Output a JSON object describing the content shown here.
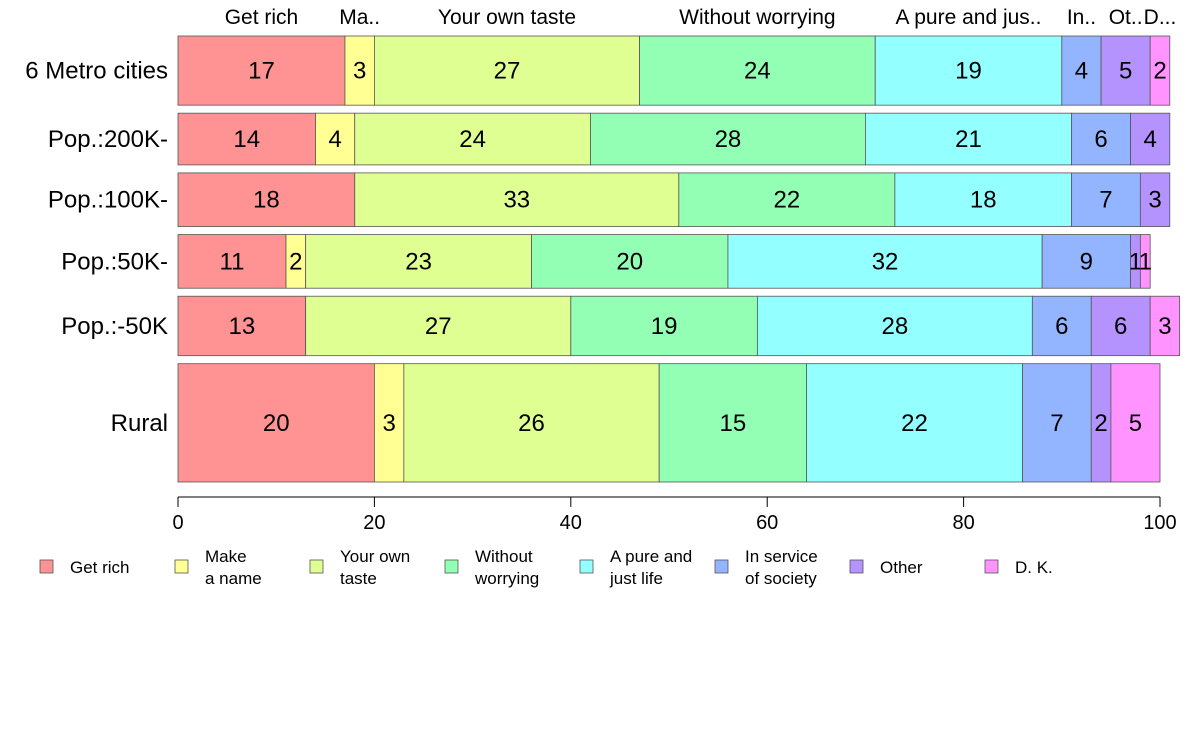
{
  "chart_data": {
    "type": "bar",
    "orientation": "horizontal",
    "stacked": true,
    "rows": [
      "6 Metro cities",
      "Pop.:200K-",
      "Pop.:100K-",
      "Pop.:50K-",
      "Pop.:-50K",
      "Rural"
    ],
    "relative_heights": [
      1.07,
      0.8,
      0.83,
      0.83,
      0.92,
      1.83
    ],
    "series": [
      {
        "name": "Get rich",
        "legend": [
          "Get rich"
        ],
        "color": "#ff9393",
        "values": [
          17,
          14,
          18,
          11,
          13,
          20
        ]
      },
      {
        "name": "Make a name",
        "legend": [
          "Make",
          "a name"
        ],
        "color": "#ffff93",
        "values": [
          3,
          4,
          0,
          2,
          0,
          3
        ]
      },
      {
        "name": "Your own taste",
        "legend": [
          "Your own",
          "taste"
        ],
        "color": "#dfff93",
        "values": [
          27,
          24,
          33,
          23,
          27,
          26
        ]
      },
      {
        "name": "Without worrying",
        "legend": [
          "Without",
          "worrying"
        ],
        "color": "#93ffb5",
        "values": [
          24,
          28,
          22,
          20,
          19,
          15
        ]
      },
      {
        "name": "A pure and just life",
        "legend": [
          "A pure and",
          "just life"
        ],
        "color": "#93ffff",
        "values": [
          19,
          21,
          18,
          32,
          28,
          22
        ]
      },
      {
        "name": "In service of society",
        "legend": [
          "In service",
          "of society"
        ],
        "color": "#93b5ff",
        "values": [
          4,
          6,
          7,
          9,
          6,
          7
        ]
      },
      {
        "name": "Other",
        "legend": [
          "Other"
        ],
        "color": "#b593ff",
        "values": [
          5,
          4,
          3,
          1,
          6,
          2
        ]
      },
      {
        "name": "D. K.",
        "legend": [
          "D. K."
        ],
        "color": "#ff93ff",
        "values": [
          2,
          0,
          0,
          1,
          3,
          5
        ]
      }
    ],
    "top_labels": [
      "Get rich",
      "Ma..",
      "Your own taste",
      "Without worrying",
      "A pure and jus..",
      "In..",
      "Ot..",
      "D..."
    ],
    "xlim": [
      0,
      100
    ],
    "xticks": [
      0,
      20,
      40,
      60,
      80,
      100
    ],
    "legend_position": "bottom"
  }
}
